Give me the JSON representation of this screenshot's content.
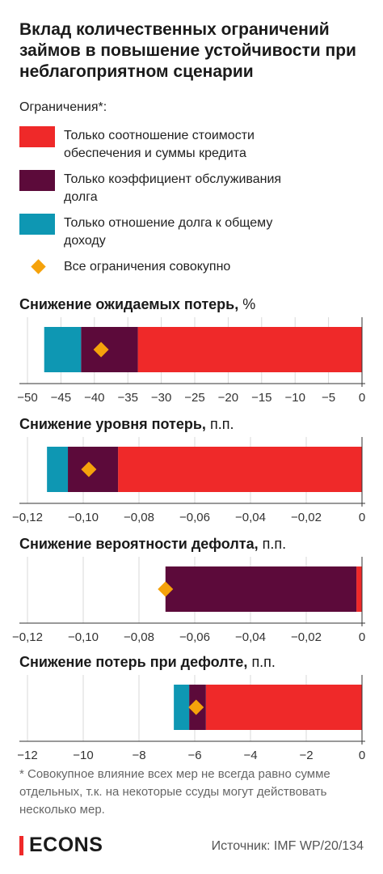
{
  "title": "Вклад количественных ограничений займов в повышение устойчивости при неблагоприятном сценарии",
  "legend": {
    "heading": "Ограничения*:",
    "items": [
      {
        "label": "Только соотношение стоимости обеспечения и суммы кредита",
        "color": "#ef2929"
      },
      {
        "label": "Только коэффициент обслуживания долга",
        "color": "#5c0a3a"
      },
      {
        "label": "Только отношение долга к общему доходу",
        "color": "#0e97b3"
      }
    ],
    "combined": {
      "label": "Все ограничения совокупно",
      "color": "#f5a20b"
    }
  },
  "chart_data": [
    {
      "type": "bar",
      "stacked": true,
      "title": "Снижение ожидаемых потерь,",
      "unit": "%",
      "xlim": [
        -50,
        0
      ],
      "ticks": [
        -50,
        -45,
        -40,
        -35,
        -30,
        -25,
        -20,
        -15,
        -10,
        -5,
        0
      ],
      "tick_labels": [
        "−50",
        "−45",
        "−40",
        "−35",
        "−30",
        "−25",
        "−20",
        "−15",
        "−10",
        "−5",
        "0"
      ],
      "series": [
        {
          "name": "Только соотношение стоимости обеспечения и суммы кредита",
          "value": -33.5
        },
        {
          "name": "Только коэффициент обслуживания долга",
          "value": -8.5
        },
        {
          "name": "Только отношение долга к общему доходу",
          "value": -5.5
        }
      ],
      "combined": -39
    },
    {
      "type": "bar",
      "stacked": true,
      "title": "Снижение уровня потерь,",
      "unit": "п.п.",
      "xlim": [
        -0.12,
        0
      ],
      "ticks": [
        -0.12,
        -0.1,
        -0.08,
        -0.06,
        -0.04,
        -0.02,
        0
      ],
      "tick_labels": [
        "−0,12",
        "−0,10",
        "−0,08",
        "−0,06",
        "−0,04",
        "−0,02",
        "0"
      ],
      "series": [
        {
          "name": "Только соотношение стоимости обеспечения и суммы кредита",
          "value": -0.0875
        },
        {
          "name": "Только коэффициент обслуживания долга",
          "value": -0.018
        },
        {
          "name": "Только отношение долга к общему доходу",
          "value": -0.0075
        }
      ],
      "combined": -0.098
    },
    {
      "type": "bar",
      "stacked": true,
      "title": "Снижение вероятности дефолта,",
      "unit": "п.п.",
      "xlim": [
        -0.12,
        0
      ],
      "ticks": [
        -0.12,
        -0.1,
        -0.08,
        -0.06,
        -0.04,
        -0.02,
        0
      ],
      "tick_labels": [
        "−0,12",
        "−0,10",
        "−0,08",
        "−0,06",
        "−0,04",
        "−0,02",
        "0"
      ],
      "series": [
        {
          "name": "Только соотношение стоимости обеспечения и суммы кредита",
          "value": -0.002
        },
        {
          "name": "Только коэффициент обслуживания долга",
          "value": -0.0685
        },
        {
          "name": "Только отношение долга к общему доходу",
          "value": 0
        }
      ],
      "combined": -0.0705
    },
    {
      "type": "bar",
      "stacked": true,
      "title": "Снижение потерь при дефолте,",
      "unit": "п.п.",
      "xlim": [
        -12.6,
        0
      ],
      "ticks": [
        -12,
        -10,
        -8,
        -6,
        -4,
        -2,
        0
      ],
      "tick_labels": [
        "−12",
        "−10",
        "−8",
        "−6",
        "−4",
        "−2",
        "0"
      ],
      "series": [
        {
          "name": "Только соотношение стоимости обеспечения и суммы кредита",
          "value": -5.6
        },
        {
          "name": "Только коэффициент обслуживания долга",
          "value": -0.6
        },
        {
          "name": "Только отношение долга к общему доходу",
          "value": -0.55
        }
      ],
      "combined": -5.95
    }
  ],
  "footnote": "* Совокупное влияние всех мер не всегда равно сумме отдельных, т.к. на некоторые ссуды могут действовать несколько мер.",
  "brand": "ECONS",
  "source": "Источник: IMF WP/20/134"
}
